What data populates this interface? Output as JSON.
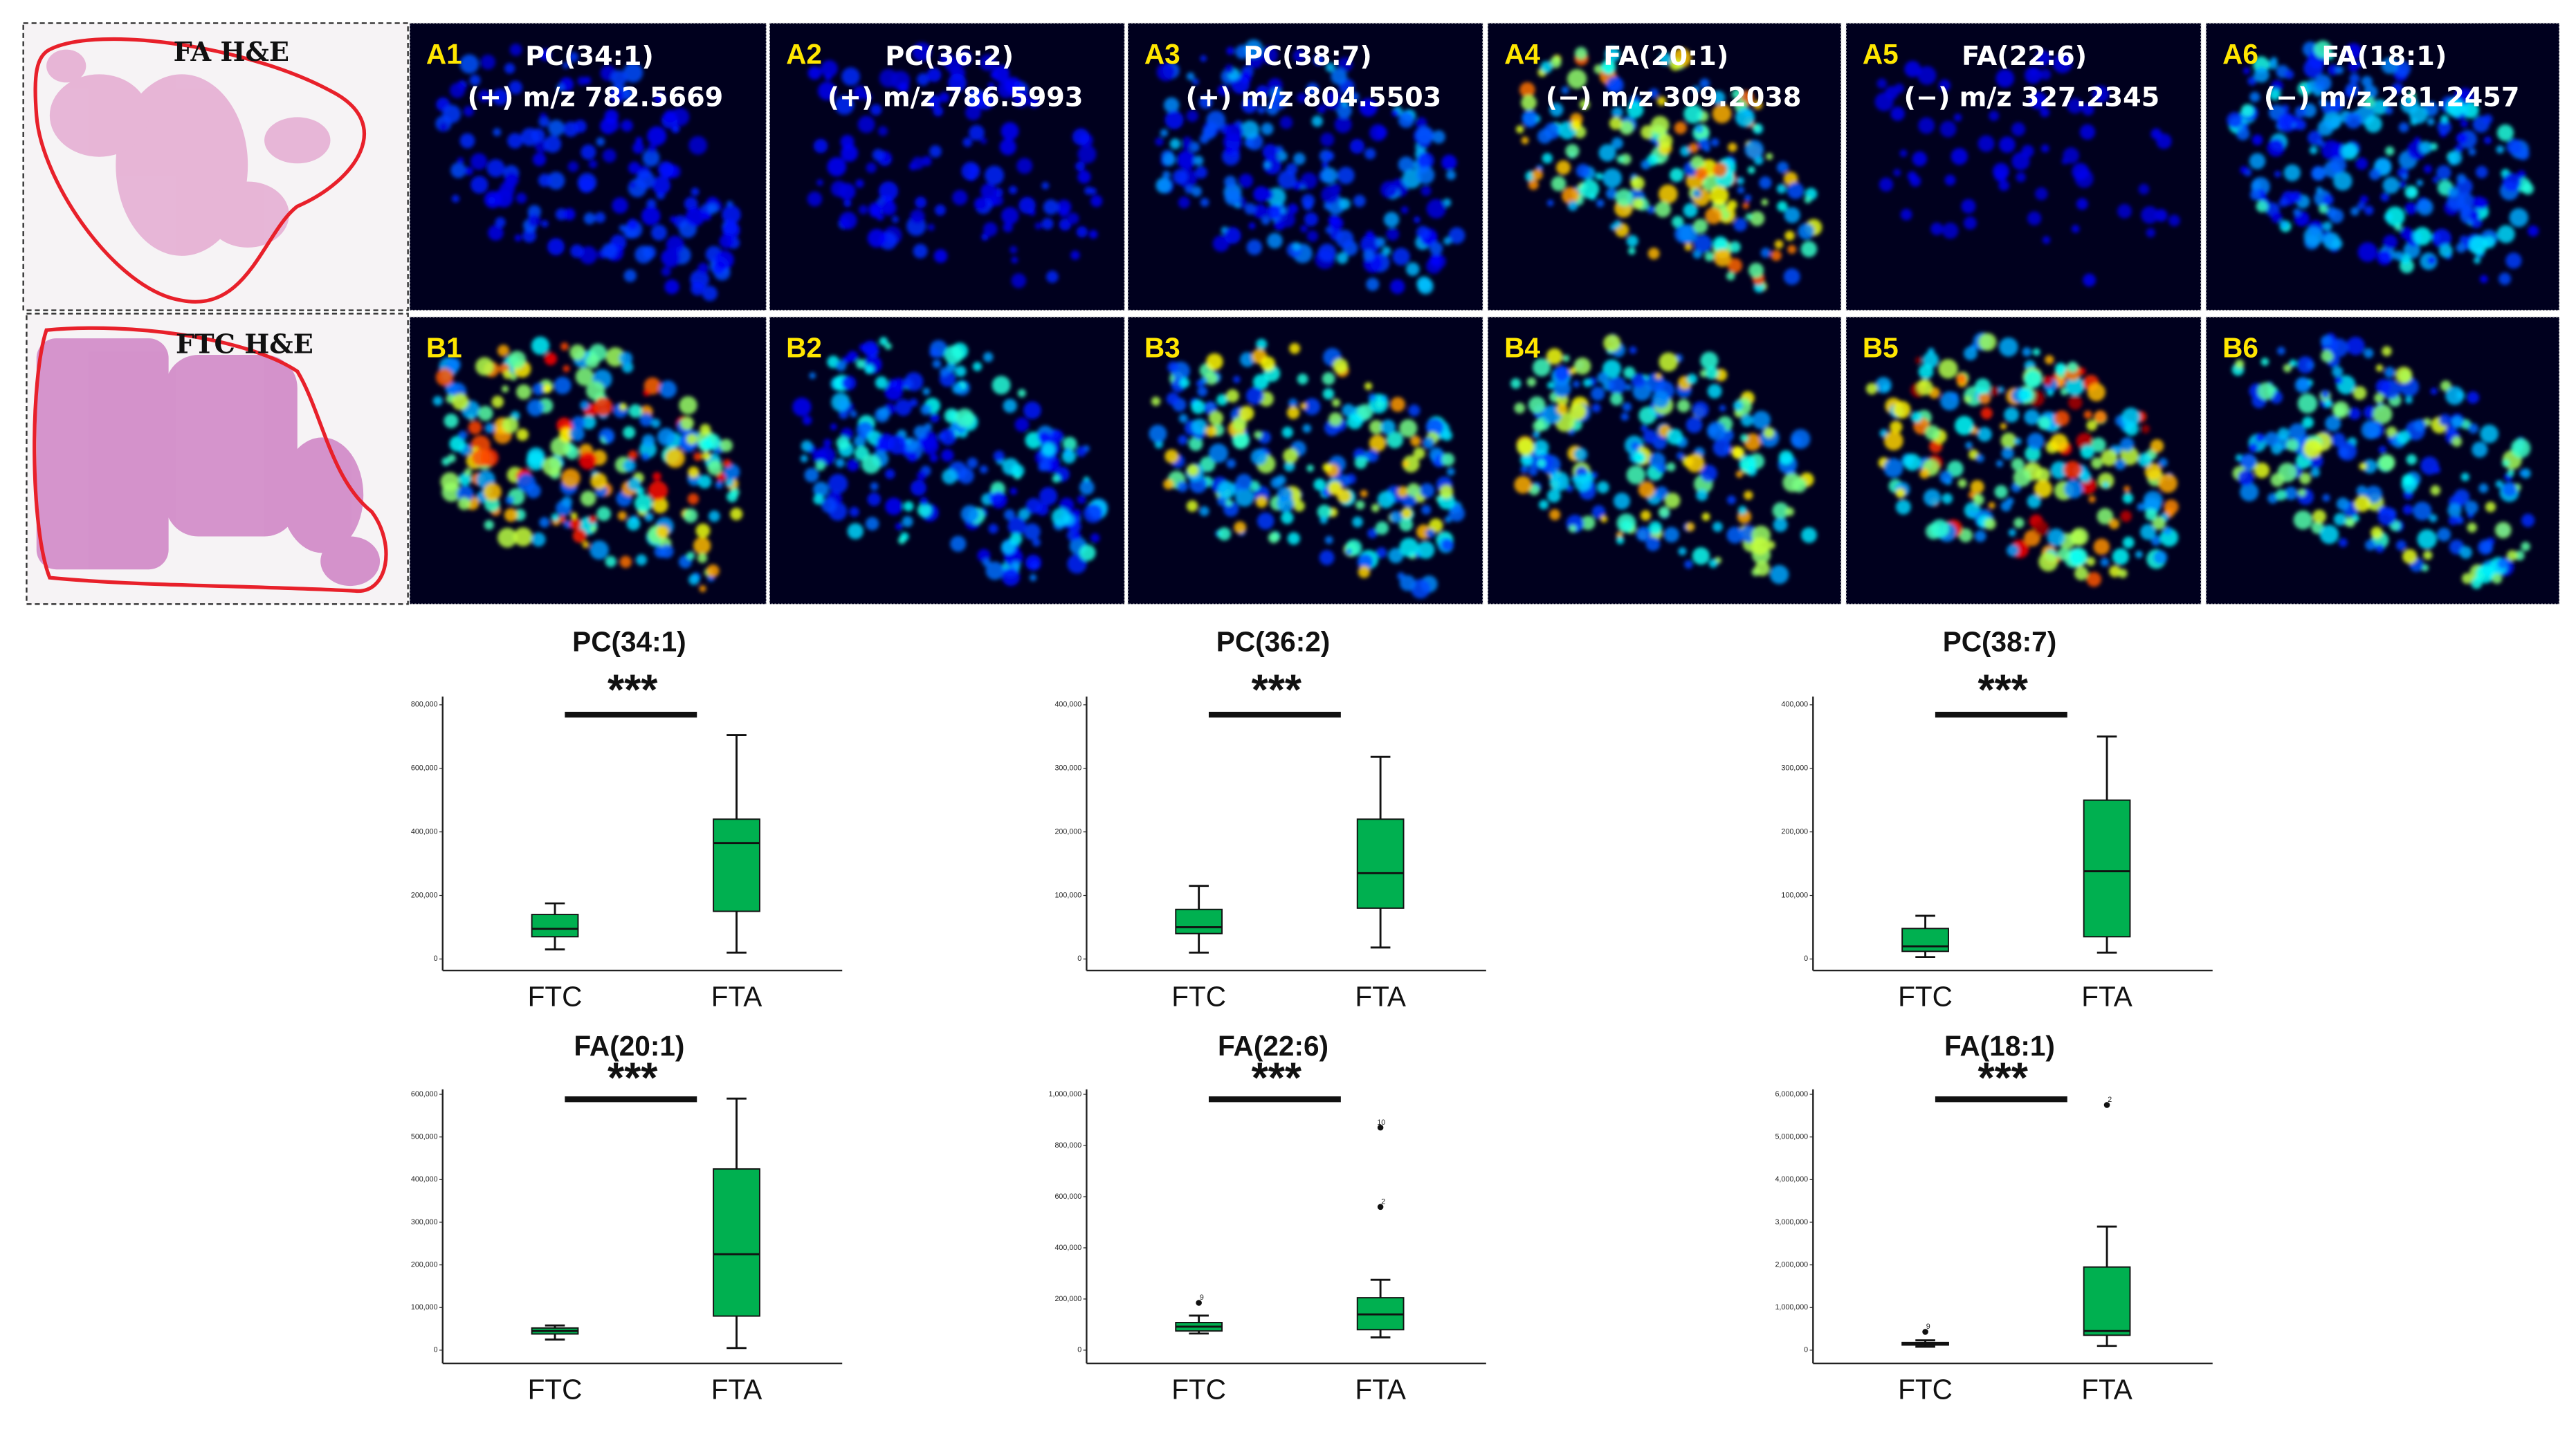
{
  "he": [
    {
      "label": "FA H&E"
    },
    {
      "label": "FTC H&E"
    }
  ],
  "panels": {
    "A": [
      {
        "label": "A1",
        "title": "PC(34:1)",
        "mz": "(+) m/z 782.5669"
      },
      {
        "label": "A2",
        "title": "PC(36:2)",
        "mz": "(+) m/z 786.5993"
      },
      {
        "label": "A3",
        "title": "PC(38:7)",
        "mz": "(+) m/z 804.5503"
      },
      {
        "label": "A4",
        "title": "FA(20:1)",
        "mz": "(−) m/z 309.2038"
      },
      {
        "label": "A5",
        "title": "FA(22:6)",
        "mz": "(−) m/z 327.2345"
      },
      {
        "label": "A6",
        "title": "FA(18:1)",
        "mz": "(−) m/z 281.2457"
      }
    ],
    "B": [
      "B1",
      "B2",
      "B3",
      "B4",
      "B5",
      "B6"
    ]
  },
  "chart_data": [
    {
      "type": "box",
      "title": "PC(34:1)",
      "significance": "***",
      "color": "#00b050",
      "categories": [
        "FTC",
        "FTA"
      ],
      "ylim": [
        0,
        800000
      ],
      "yticks": [
        0,
        {
          "value": 200000,
          "label": "200,000"
        },
        {
          "value": 400000,
          "label": "400,000"
        },
        {
          "value": 600000,
          "label": "600,000"
        },
        {
          "value": 800000,
          "label": "800,000"
        }
      ],
      "boxes": [
        {
          "whisker_low": 30000,
          "q1": 70000,
          "median": 95000,
          "q3": 140000,
          "whisker_high": 175000,
          "outliers": []
        },
        {
          "whisker_low": 20000,
          "q1": 150000,
          "median": 365000,
          "q3": 440000,
          "whisker_high": 705000,
          "outliers": []
        }
      ]
    },
    {
      "type": "box",
      "title": "PC(36:2)",
      "significance": "***",
      "color": "#00b050",
      "categories": [
        "FTC",
        "FTA"
      ],
      "ylim": [
        0,
        400000
      ],
      "yticks": [
        0,
        {
          "value": 100000,
          "label": "100,000"
        },
        {
          "value": 200000,
          "label": "200,000"
        },
        {
          "value": 300000,
          "label": "300,000"
        },
        {
          "value": 400000,
          "label": "400,000"
        }
      ],
      "boxes": [
        {
          "whisker_low": 10000,
          "q1": 40000,
          "median": 50000,
          "q3": 78000,
          "whisker_high": 115000,
          "outliers": []
        },
        {
          "whisker_low": 18000,
          "q1": 80000,
          "median": 135000,
          "q3": 220000,
          "whisker_high": 318000,
          "outliers": []
        }
      ]
    },
    {
      "type": "box",
      "title": "PC(38:7)",
      "significance": "***",
      "color": "#00b050",
      "categories": [
        "FTC",
        "FTA"
      ],
      "ylim": [
        0,
        400000
      ],
      "yticks": [
        0,
        {
          "value": 100000,
          "label": "100,000"
        },
        {
          "value": 200000,
          "label": "200,000"
        },
        {
          "value": 300000,
          "label": "300,000"
        },
        {
          "value": 400000,
          "label": "400,000"
        }
      ],
      "boxes": [
        {
          "whisker_low": 3000,
          "q1": 12000,
          "median": 20000,
          "q3": 48000,
          "whisker_high": 68000,
          "outliers": []
        },
        {
          "whisker_low": 10000,
          "q1": 35000,
          "median": 138000,
          "q3": 250000,
          "whisker_high": 350000,
          "outliers": []
        }
      ]
    },
    {
      "type": "box",
      "title": "FA(20:1)",
      "significance": "***",
      "color": "#00b050",
      "categories": [
        "FTC",
        "FTA"
      ],
      "ylim": [
        0,
        600000
      ],
      "yticks": [
        0,
        {
          "value": 100000,
          "label": "100,000"
        },
        {
          "value": 200000,
          "label": "200,000"
        },
        {
          "value": 300000,
          "label": "300,000"
        },
        {
          "value": 400000,
          "label": "400,000"
        },
        {
          "value": 500000,
          "label": "500,000"
        },
        {
          "value": 600000,
          "label": "600,000"
        }
      ],
      "boxes": [
        {
          "whisker_low": 25000,
          "q1": 38000,
          "median": 45000,
          "q3": 52000,
          "whisker_high": 58000,
          "outliers": []
        },
        {
          "whisker_low": 5000,
          "q1": 80000,
          "median": 225000,
          "q3": 425000,
          "whisker_high": 590000,
          "outliers": []
        }
      ]
    },
    {
      "type": "box",
      "title": "FA(22:6)",
      "significance": "***",
      "color": "#00b050",
      "categories": [
        "FTC",
        "FTA"
      ],
      "ylim": [
        0,
        1000000
      ],
      "yticks": [
        0,
        {
          "value": 200000,
          "label": "200,000"
        },
        {
          "value": 400000,
          "label": "400,000"
        },
        {
          "value": 600000,
          "label": "600,000"
        },
        {
          "value": 800000,
          "label": "800,000"
        },
        {
          "value": 1000000,
          "label": "1,000,000"
        }
      ],
      "boxes": [
        {
          "whisker_low": 65000,
          "q1": 75000,
          "median": 92000,
          "q3": 108000,
          "whisker_high": 135000,
          "outliers": [
            {
              "value": 185000,
              "label": "9"
            }
          ]
        },
        {
          "whisker_low": 50000,
          "q1": 80000,
          "median": 140000,
          "q3": 205000,
          "whisker_high": 275000,
          "outliers": [
            {
              "value": 560000,
              "label": "2"
            },
            {
              "value": 870000,
              "label": "10"
            }
          ]
        }
      ]
    },
    {
      "type": "box",
      "title": "FA(18:1)",
      "significance": "***",
      "color": "#00b050",
      "categories": [
        "FTC",
        "FTA"
      ],
      "ylim": [
        0,
        6000000
      ],
      "yticks": [
        0,
        {
          "value": 1000000,
          "label": "1,000,000"
        },
        {
          "value": 2000000,
          "label": "2,000,000"
        },
        {
          "value": 3000000,
          "label": "3,000,000"
        },
        {
          "value": 4000000,
          "label": "4,000,000"
        },
        {
          "value": 5000000,
          "label": "5,000,000"
        },
        {
          "value": 6000000,
          "label": "6,000,000"
        }
      ],
      "boxes": [
        {
          "whisker_low": 80000,
          "q1": 120000,
          "median": 150000,
          "q3": 180000,
          "whisker_high": 230000,
          "outliers": [
            {
              "value": 430000,
              "label": "9"
            }
          ]
        },
        {
          "whisker_low": 100000,
          "q1": 350000,
          "median": 450000,
          "q3": 1950000,
          "whisker_high": 2900000,
          "outliers": [
            {
              "value": 5750000,
              "label": "2"
            }
          ]
        }
      ]
    }
  ]
}
